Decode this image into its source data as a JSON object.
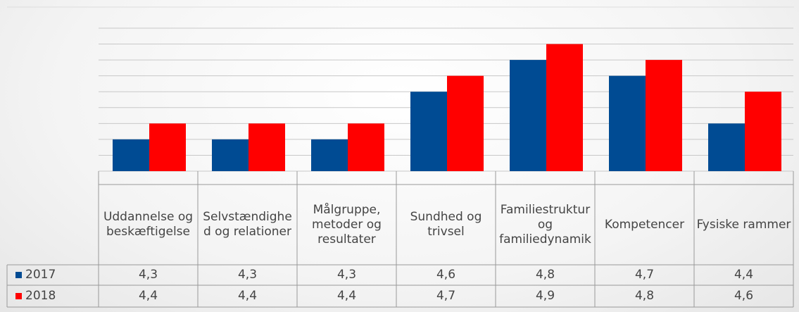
{
  "chart_data": {
    "type": "bar",
    "categories": [
      "Uddannelse og beskæftigelse",
      "Selvstændighed og relationer",
      "Målgruppe, metoder og resultater",
      "Sundhed og trivsel",
      "Familiestruktur og familiedynamik",
      "Kompetencer",
      "Fysiske rammer"
    ],
    "series": [
      {
        "name": "2017",
        "color": "#004b93",
        "values": [
          4.3,
          4.3,
          4.3,
          4.6,
          4.8,
          4.7,
          4.4
        ],
        "value_labels": [
          "4,3",
          "4,3",
          "4,3",
          "4,6",
          "4,8",
          "4,7",
          "4,4"
        ]
      },
      {
        "name": "2018",
        "color": "#ff0000",
        "values": [
          4.4,
          4.4,
          4.4,
          4.7,
          4.9,
          4.8,
          4.6
        ],
        "value_labels": [
          "4,4",
          "4,4",
          "4,4",
          "4,7",
          "4,9",
          "4,8",
          "4,6"
        ]
      }
    ],
    "ylim": [
      4.1,
      5.0
    ],
    "yticks": [
      4.1,
      4.2,
      4.3,
      4.4,
      4.5,
      4.6,
      4.7,
      4.8,
      4.9,
      5.0
    ],
    "grid": true
  }
}
